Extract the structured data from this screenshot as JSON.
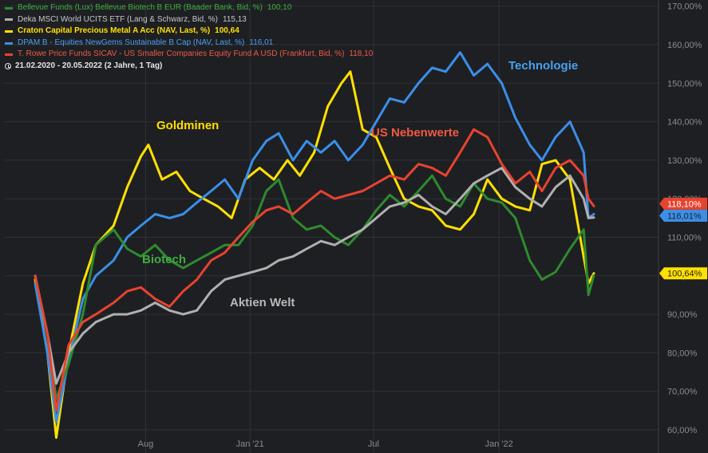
{
  "legend": {
    "items": [
      {
        "label": "Bellevue Funds (Lux) Bellevue Biotech B EUR (Baader Bank, Bid, %)",
        "value": "100,10",
        "color": "#2e8b2e",
        "text_color": "#3fae3f",
        "bold": false
      },
      {
        "label": "Deka MSCI World UCITS ETF (Lang & Schwarz, Bid, %)",
        "value": "115,13",
        "color": "#b0b0b0",
        "text_color": "#c8c8c8",
        "bold": false
      },
      {
        "label": "Craton Capital Precious Metal A Acc (NAV, Last, %)",
        "value": "100,64",
        "color": "#ffe000",
        "text_color": "#ffe000",
        "bold": true
      },
      {
        "label": "DPAM B - Equities NewGems Sustainable B Cap (NAV, Last, %)",
        "value": "116,01",
        "color": "#3b8fe8",
        "text_color": "#4aa0f0",
        "bold": false
      },
      {
        "label": "T. Rowe Price Funds SICAV - US Smaller Companies Equity Fund A USD (Frankfurt, Bid, %)",
        "value": "118,10",
        "color": "#e8432e",
        "text_color": "#f05a40",
        "bold": false
      }
    ],
    "range": "21.02.2020 - 20.05.2022  (2 Jahre, 1 Tag)"
  },
  "annotations": {
    "goldminen": "Goldminen",
    "us_nebenwerte": "US Nebenwerte",
    "technologie": "Technologie",
    "biotech": "Biotech",
    "aktien_welt": "Aktien Welt"
  },
  "price_tags": {
    "red": "118,10%",
    "blue": "116,01%",
    "yellow": "100,64%"
  },
  "chart_data": {
    "type": "line",
    "title": "",
    "xlabel": "",
    "ylabel": "",
    "x_range": [
      "2020-02-21",
      "2022-05-20"
    ],
    "ylim": [
      57,
      171
    ],
    "y_ticks": [
      60,
      70,
      80,
      90,
      100,
      110,
      120,
      130,
      140,
      150,
      160,
      170
    ],
    "y_tick_labels": [
      "60,00%",
      "70,00%",
      "80,00%",
      "90,00%",
      "100,00%",
      "110,00%",
      "120,00%",
      "130,00%",
      "140,00%",
      "150,00%",
      "160,00%",
      "170,00%"
    ],
    "x_ticks": [
      {
        "label": "Aug",
        "date": "2020-08-01"
      },
      {
        "label": "Jan '21",
        "date": "2021-01-01"
      },
      {
        "label": "Jul",
        "date": "2021-07-01"
      },
      {
        "label": "Jan '22",
        "date": "2022-01-01"
      }
    ],
    "grid": true,
    "legend_position": "top-left",
    "series": [
      {
        "key": "biotech",
        "name": "Bellevue Funds (Lux) Bellevue Biotech B EUR (Baader Bank, Bid, %)",
        "color": "#2e8b2e",
        "last": 100.1,
        "x": [
          "2020-02-21",
          "2020-03-10",
          "2020-03-23",
          "2020-04-10",
          "2020-05-01",
          "2020-05-20",
          "2020-06-15",
          "2020-07-05",
          "2020-07-25",
          "2020-08-15",
          "2020-09-05",
          "2020-09-25",
          "2020-10-15",
          "2020-11-05",
          "2020-11-25",
          "2020-12-15",
          "2021-01-05",
          "2021-01-25",
          "2021-02-12",
          "2021-03-05",
          "2021-03-25",
          "2021-04-15",
          "2021-05-05",
          "2021-05-25",
          "2021-06-15",
          "2021-07-05",
          "2021-07-25",
          "2021-08-15",
          "2021-09-05",
          "2021-09-25",
          "2021-10-15",
          "2021-11-05",
          "2021-11-25",
          "2021-12-15",
          "2022-01-05",
          "2022-01-25",
          "2022-02-15",
          "2022-03-05",
          "2022-03-25",
          "2022-04-15",
          "2022-05-05",
          "2022-05-12",
          "2022-05-20"
        ],
        "y": [
          100,
          85,
          68,
          77,
          90,
          108,
          112,
          107,
          105,
          108,
          104,
          102,
          104,
          106,
          108,
          108,
          113,
          122,
          125,
          115,
          112,
          113,
          110,
          108,
          112,
          117,
          121,
          118,
          122,
          126,
          120,
          118,
          124,
          120,
          119,
          115,
          104,
          99,
          101,
          107,
          112,
          95,
          100.1
        ]
      },
      {
        "key": "world",
        "name": "Deka MSCI World UCITS ETF (Lang & Schwarz, Bid, %)",
        "color": "#b0b0b0",
        "last": 115.13,
        "x": [
          "2020-02-21",
          "2020-03-10",
          "2020-03-23",
          "2020-04-10",
          "2020-05-01",
          "2020-05-20",
          "2020-06-15",
          "2020-07-05",
          "2020-07-25",
          "2020-08-15",
          "2020-09-05",
          "2020-09-25",
          "2020-10-15",
          "2020-11-05",
          "2020-11-25",
          "2020-12-15",
          "2021-01-05",
          "2021-01-25",
          "2021-02-12",
          "2021-03-05",
          "2021-03-25",
          "2021-04-15",
          "2021-05-05",
          "2021-05-25",
          "2021-06-15",
          "2021-07-05",
          "2021-07-25",
          "2021-08-15",
          "2021-09-05",
          "2021-09-25",
          "2021-10-15",
          "2021-11-05",
          "2021-11-25",
          "2021-12-15",
          "2022-01-05",
          "2022-01-25",
          "2022-02-15",
          "2022-03-05",
          "2022-03-25",
          "2022-04-15",
          "2022-05-05",
          "2022-05-12",
          "2022-05-20"
        ],
        "y": [
          100,
          85,
          72,
          80,
          85,
          88,
          90,
          90,
          91,
          93,
          91,
          90,
          91,
          96,
          99,
          100,
          101,
          102,
          104,
          105,
          107,
          109,
          108,
          110,
          112,
          115,
          118,
          119,
          121,
          118,
          116,
          120,
          124,
          126,
          128,
          123,
          120,
          118,
          123,
          126,
          120,
          115,
          115.13
        ]
      },
      {
        "key": "gold",
        "name": "Craton Capital Precious Metal A Acc (NAV, Last, %)",
        "color": "#ffe000",
        "last": 100.64,
        "x": [
          "2020-02-21",
          "2020-03-10",
          "2020-03-23",
          "2020-04-10",
          "2020-05-01",
          "2020-05-20",
          "2020-06-15",
          "2020-07-05",
          "2020-07-25",
          "2020-08-05",
          "2020-08-25",
          "2020-09-15",
          "2020-10-05",
          "2020-10-25",
          "2020-11-15",
          "2020-12-05",
          "2020-12-25",
          "2021-01-15",
          "2021-02-05",
          "2021-02-25",
          "2021-03-15",
          "2021-04-05",
          "2021-04-25",
          "2021-05-15",
          "2021-05-28",
          "2021-06-15",
          "2021-07-05",
          "2021-07-25",
          "2021-08-15",
          "2021-09-05",
          "2021-09-25",
          "2021-10-15",
          "2021-11-05",
          "2021-11-25",
          "2021-12-15",
          "2022-01-05",
          "2022-01-25",
          "2022-02-15",
          "2022-03-05",
          "2022-03-25",
          "2022-04-15",
          "2022-05-05",
          "2022-05-12",
          "2022-05-20"
        ],
        "y": [
          99,
          80,
          58,
          80,
          98,
          108,
          113,
          123,
          131,
          134,
          125,
          127,
          122,
          120,
          118,
          115,
          125,
          128,
          125,
          130,
          126,
          132,
          144,
          150,
          153,
          138,
          136,
          128,
          120,
          118,
          117,
          113,
          112,
          116,
          125,
          120,
          118,
          117,
          129,
          130,
          125,
          105,
          98,
          100.64
        ]
      },
      {
        "key": "tech",
        "name": "DPAM B - Equities NewGems Sustainable B Cap (NAV, Last, %)",
        "color": "#3b8fe8",
        "last": 116.01,
        "x": [
          "2020-02-21",
          "2020-03-10",
          "2020-03-23",
          "2020-04-10",
          "2020-05-01",
          "2020-05-20",
          "2020-06-15",
          "2020-07-05",
          "2020-07-25",
          "2020-08-15",
          "2020-09-05",
          "2020-09-25",
          "2020-10-15",
          "2020-11-05",
          "2020-11-25",
          "2020-12-15",
          "2021-01-05",
          "2021-01-25",
          "2021-02-12",
          "2021-03-05",
          "2021-03-25",
          "2021-04-15",
          "2021-05-05",
          "2021-05-25",
          "2021-06-15",
          "2021-07-05",
          "2021-07-25",
          "2021-08-15",
          "2021-09-05",
          "2021-09-25",
          "2021-10-15",
          "2021-11-05",
          "2021-11-25",
          "2021-12-15",
          "2022-01-05",
          "2022-01-25",
          "2022-02-15",
          "2022-03-05",
          "2022-03-25",
          "2022-04-15",
          "2022-05-05",
          "2022-05-12",
          "2022-05-20"
        ],
        "y": [
          98,
          80,
          62,
          78,
          94,
          100,
          104,
          110,
          113,
          116,
          115,
          116,
          119,
          122,
          125,
          120,
          130,
          135,
          137,
          130,
          135,
          132,
          135,
          130,
          134,
          140,
          146,
          145,
          150,
          154,
          153,
          158,
          152,
          155,
          150,
          141,
          134,
          130,
          136,
          140,
          132,
          115,
          116.01
        ]
      },
      {
        "key": "small",
        "name": "T. Rowe Price Funds SICAV - US Smaller Companies Equity Fund A USD (Frankfurt, Bid, %)",
        "color": "#e8432e",
        "last": 118.1,
        "x": [
          "2020-02-21",
          "2020-03-10",
          "2020-03-23",
          "2020-04-10",
          "2020-05-01",
          "2020-05-20",
          "2020-06-15",
          "2020-07-05",
          "2020-07-25",
          "2020-08-15",
          "2020-09-05",
          "2020-09-25",
          "2020-10-15",
          "2020-11-05",
          "2020-11-25",
          "2020-12-15",
          "2021-01-05",
          "2021-01-25",
          "2021-02-12",
          "2021-03-05",
          "2021-03-25",
          "2021-04-15",
          "2021-05-05",
          "2021-05-25",
          "2021-06-15",
          "2021-07-05",
          "2021-07-25",
          "2021-08-15",
          "2021-09-05",
          "2021-09-25",
          "2021-10-15",
          "2021-11-05",
          "2021-11-25",
          "2021-12-15",
          "2022-01-05",
          "2022-01-25",
          "2022-02-15",
          "2022-03-05",
          "2022-03-25",
          "2022-04-15",
          "2022-05-05",
          "2022-05-12",
          "2022-05-20"
        ],
        "y": [
          100,
          85,
          65,
          82,
          88,
          90,
          93,
          96,
          97,
          94,
          92,
          96,
          99,
          104,
          106,
          110,
          114,
          117,
          118,
          116,
          119,
          122,
          120,
          121,
          122,
          124,
          126,
          125,
          129,
          128,
          126,
          132,
          138,
          136,
          129,
          124,
          127,
          122,
          128,
          130,
          126,
          120,
          118.1
        ]
      }
    ]
  }
}
